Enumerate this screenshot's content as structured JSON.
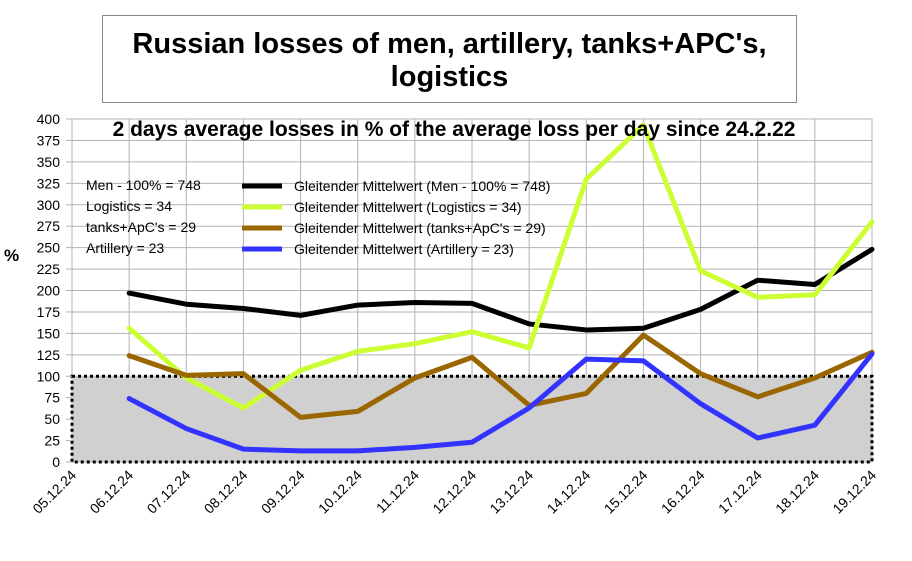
{
  "chart_data": {
    "type": "line",
    "title": "Russian losses of men, artillery, tanks+APC's, logistics",
    "subtitle": "2 days average losses in % of the average loss per day since 24.2.22",
    "ylabel": "%",
    "xlabel": "",
    "ylim": [
      0,
      400
    ],
    "yticks": [
      0,
      25,
      50,
      75,
      100,
      125,
      150,
      175,
      200,
      225,
      250,
      275,
      300,
      325,
      350,
      375,
      400
    ],
    "categories": [
      "05.12.24",
      "06.12.24",
      "07.12.24",
      "08.12.24",
      "09.12.24",
      "10.12.24",
      "11.12.24",
      "12.12.24",
      "13.12.24",
      "14.12.24",
      "15.12.24",
      "16.12.24",
      "17.12.24",
      "18.12.24",
      "19.12.24"
    ],
    "grid": true,
    "baseline_band": {
      "from": 0,
      "to": 100,
      "color": "#d0d0d0"
    },
    "legend_text": [
      "Men - 100% = 748",
      "Logistics = 34",
      "tanks+ApC's = 29",
      "Artillery  = 23"
    ],
    "series": [
      {
        "name": "Gleitender Mittelwert (Men - 100% = 748)",
        "color": "#000000",
        "values": [
          null,
          197,
          184,
          179,
          171,
          183,
          186,
          185,
          161,
          154,
          156,
          178,
          212,
          207,
          248
        ]
      },
      {
        "name": "Gleitender Mittelwert (Logistics = 34)",
        "color": "#ccff33",
        "values": [
          null,
          156,
          98,
          63,
          107,
          129,
          138,
          152,
          133,
          330,
          393,
          223,
          192,
          195,
          280
        ]
      },
      {
        "name": "Gleitender Mittelwert (tanks+ApC's = 29)",
        "color": "#996600",
        "values": [
          null,
          124,
          101,
          103,
          52,
          59,
          98,
          122,
          66,
          80,
          148,
          103,
          76,
          98,
          128
        ]
      },
      {
        "name": "Gleitender Mittelwert (Artillery  = 23)",
        "color": "#3333ff",
        "values": [
          null,
          74,
          39,
          15,
          13,
          13,
          17,
          23,
          63,
          120,
          118,
          68,
          28,
          43,
          126
        ]
      }
    ]
  }
}
